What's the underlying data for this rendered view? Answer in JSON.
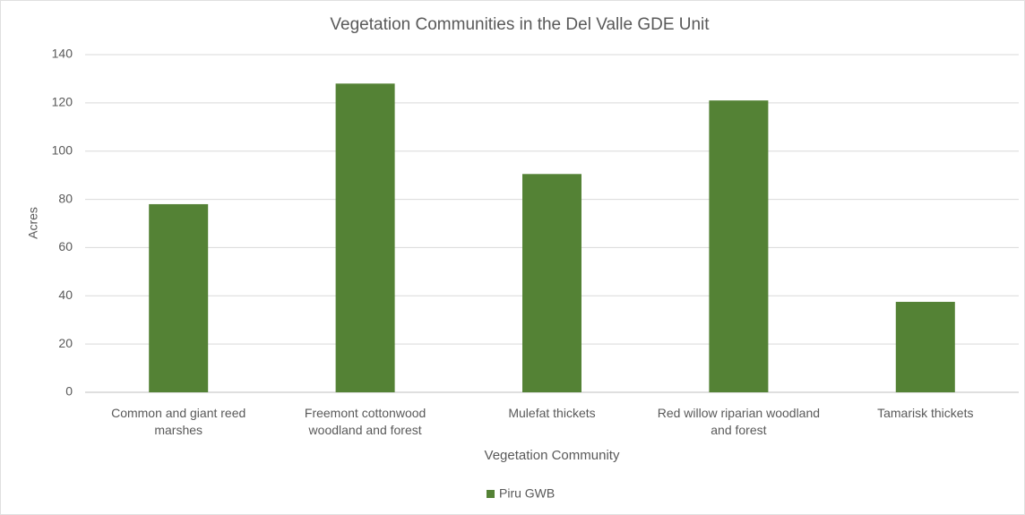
{
  "chart_data": {
    "type": "bar",
    "title": "Vegetation Communities in the Del Valle GDE Unit",
    "x_label": "Vegetation Community",
    "y_label": "Acres",
    "categories": [
      "Common and giant reed marshes",
      "Freemont cottonwood woodland and forest",
      "Mulefat thickets",
      "Red willow riparian woodland and forest",
      "Tamarisk thickets"
    ],
    "series": [
      {
        "name": "Piru GWB",
        "color": "#548235",
        "values": [
          78,
          128,
          90.5,
          121,
          37.5
        ]
      }
    ],
    "ylim": [
      0,
      140
    ],
    "yticks": [
      0,
      20,
      40,
      60,
      80,
      100,
      120,
      140
    ],
    "grid": true,
    "legend": "bottom"
  }
}
